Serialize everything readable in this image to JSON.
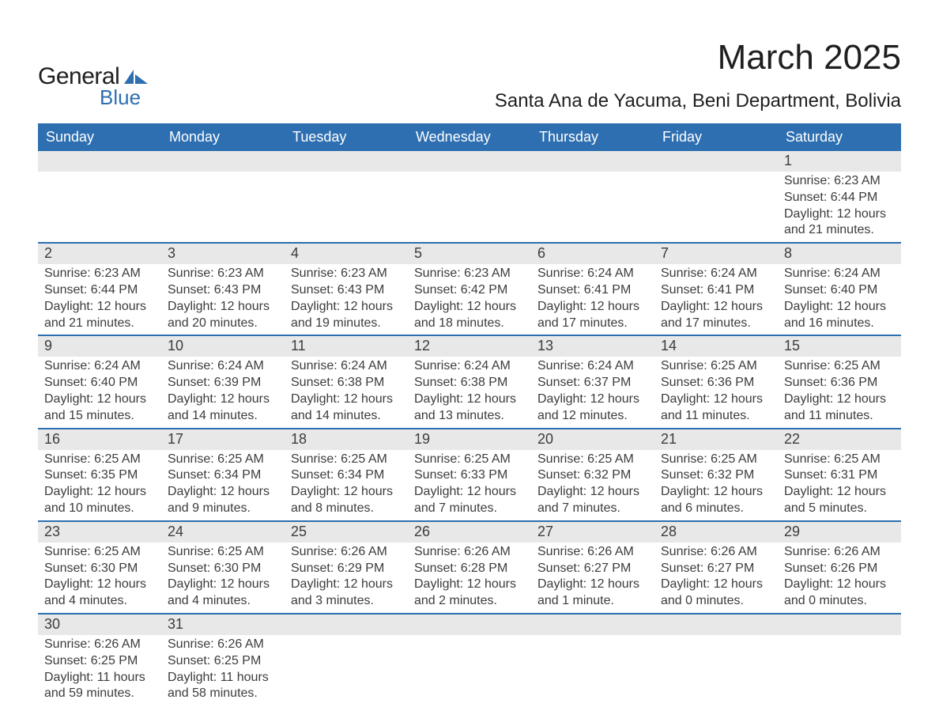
{
  "logo": {
    "word1": "General",
    "word2": "Blue",
    "shape_color": "#2d6fb0",
    "word1_color": "#1f1f1f",
    "word2_color": "#2d6fb0"
  },
  "header": {
    "month_title": "March 2025",
    "location": "Santa Ana de Yacuma, Beni Department, Bolivia",
    "title_color": "#1f1f1f"
  },
  "calendar": {
    "header_bg": "#2d6fb0",
    "header_fg": "#ffffff",
    "daynum_bg": "#e8e8e8",
    "week_border": "#2d6fb0",
    "text_color": "#3c3c3c",
    "day_headers": [
      "Sunday",
      "Monday",
      "Tuesday",
      "Wednesday",
      "Thursday",
      "Friday",
      "Saturday"
    ],
    "weeks": [
      [
        {
          "num": "",
          "lines": []
        },
        {
          "num": "",
          "lines": []
        },
        {
          "num": "",
          "lines": []
        },
        {
          "num": "",
          "lines": []
        },
        {
          "num": "",
          "lines": []
        },
        {
          "num": "",
          "lines": []
        },
        {
          "num": "1",
          "lines": [
            "Sunrise: 6:23 AM",
            "Sunset: 6:44 PM",
            "Daylight: 12 hours",
            "and 21 minutes."
          ]
        }
      ],
      [
        {
          "num": "2",
          "lines": [
            "Sunrise: 6:23 AM",
            "Sunset: 6:44 PM",
            "Daylight: 12 hours",
            "and 21 minutes."
          ]
        },
        {
          "num": "3",
          "lines": [
            "Sunrise: 6:23 AM",
            "Sunset: 6:43 PM",
            "Daylight: 12 hours",
            "and 20 minutes."
          ]
        },
        {
          "num": "4",
          "lines": [
            "Sunrise: 6:23 AM",
            "Sunset: 6:43 PM",
            "Daylight: 12 hours",
            "and 19 minutes."
          ]
        },
        {
          "num": "5",
          "lines": [
            "Sunrise: 6:23 AM",
            "Sunset: 6:42 PM",
            "Daylight: 12 hours",
            "and 18 minutes."
          ]
        },
        {
          "num": "6",
          "lines": [
            "Sunrise: 6:24 AM",
            "Sunset: 6:41 PM",
            "Daylight: 12 hours",
            "and 17 minutes."
          ]
        },
        {
          "num": "7",
          "lines": [
            "Sunrise: 6:24 AM",
            "Sunset: 6:41 PM",
            "Daylight: 12 hours",
            "and 17 minutes."
          ]
        },
        {
          "num": "8",
          "lines": [
            "Sunrise: 6:24 AM",
            "Sunset: 6:40 PM",
            "Daylight: 12 hours",
            "and 16 minutes."
          ]
        }
      ],
      [
        {
          "num": "9",
          "lines": [
            "Sunrise: 6:24 AM",
            "Sunset: 6:40 PM",
            "Daylight: 12 hours",
            "and 15 minutes."
          ]
        },
        {
          "num": "10",
          "lines": [
            "Sunrise: 6:24 AM",
            "Sunset: 6:39 PM",
            "Daylight: 12 hours",
            "and 14 minutes."
          ]
        },
        {
          "num": "11",
          "lines": [
            "Sunrise: 6:24 AM",
            "Sunset: 6:38 PM",
            "Daylight: 12 hours",
            "and 14 minutes."
          ]
        },
        {
          "num": "12",
          "lines": [
            "Sunrise: 6:24 AM",
            "Sunset: 6:38 PM",
            "Daylight: 12 hours",
            "and 13 minutes."
          ]
        },
        {
          "num": "13",
          "lines": [
            "Sunrise: 6:24 AM",
            "Sunset: 6:37 PM",
            "Daylight: 12 hours",
            "and 12 minutes."
          ]
        },
        {
          "num": "14",
          "lines": [
            "Sunrise: 6:25 AM",
            "Sunset: 6:36 PM",
            "Daylight: 12 hours",
            "and 11 minutes."
          ]
        },
        {
          "num": "15",
          "lines": [
            "Sunrise: 6:25 AM",
            "Sunset: 6:36 PM",
            "Daylight: 12 hours",
            "and 11 minutes."
          ]
        }
      ],
      [
        {
          "num": "16",
          "lines": [
            "Sunrise: 6:25 AM",
            "Sunset: 6:35 PM",
            "Daylight: 12 hours",
            "and 10 minutes."
          ]
        },
        {
          "num": "17",
          "lines": [
            "Sunrise: 6:25 AM",
            "Sunset: 6:34 PM",
            "Daylight: 12 hours",
            "and 9 minutes."
          ]
        },
        {
          "num": "18",
          "lines": [
            "Sunrise: 6:25 AM",
            "Sunset: 6:34 PM",
            "Daylight: 12 hours",
            "and 8 minutes."
          ]
        },
        {
          "num": "19",
          "lines": [
            "Sunrise: 6:25 AM",
            "Sunset: 6:33 PM",
            "Daylight: 12 hours",
            "and 7 minutes."
          ]
        },
        {
          "num": "20",
          "lines": [
            "Sunrise: 6:25 AM",
            "Sunset: 6:32 PM",
            "Daylight: 12 hours",
            "and 7 minutes."
          ]
        },
        {
          "num": "21",
          "lines": [
            "Sunrise: 6:25 AM",
            "Sunset: 6:32 PM",
            "Daylight: 12 hours",
            "and 6 minutes."
          ]
        },
        {
          "num": "22",
          "lines": [
            "Sunrise: 6:25 AM",
            "Sunset: 6:31 PM",
            "Daylight: 12 hours",
            "and 5 minutes."
          ]
        }
      ],
      [
        {
          "num": "23",
          "lines": [
            "Sunrise: 6:25 AM",
            "Sunset: 6:30 PM",
            "Daylight: 12 hours",
            "and 4 minutes."
          ]
        },
        {
          "num": "24",
          "lines": [
            "Sunrise: 6:25 AM",
            "Sunset: 6:30 PM",
            "Daylight: 12 hours",
            "and 4 minutes."
          ]
        },
        {
          "num": "25",
          "lines": [
            "Sunrise: 6:26 AM",
            "Sunset: 6:29 PM",
            "Daylight: 12 hours",
            "and 3 minutes."
          ]
        },
        {
          "num": "26",
          "lines": [
            "Sunrise: 6:26 AM",
            "Sunset: 6:28 PM",
            "Daylight: 12 hours",
            "and 2 minutes."
          ]
        },
        {
          "num": "27",
          "lines": [
            "Sunrise: 6:26 AM",
            "Sunset: 6:27 PM",
            "Daylight: 12 hours",
            "and 1 minute."
          ]
        },
        {
          "num": "28",
          "lines": [
            "Sunrise: 6:26 AM",
            "Sunset: 6:27 PM",
            "Daylight: 12 hours",
            "and 0 minutes."
          ]
        },
        {
          "num": "29",
          "lines": [
            "Sunrise: 6:26 AM",
            "Sunset: 6:26 PM",
            "Daylight: 12 hours",
            "and 0 minutes."
          ]
        }
      ],
      [
        {
          "num": "30",
          "lines": [
            "Sunrise: 6:26 AM",
            "Sunset: 6:25 PM",
            "Daylight: 11 hours",
            "and 59 minutes."
          ]
        },
        {
          "num": "31",
          "lines": [
            "Sunrise: 6:26 AM",
            "Sunset: 6:25 PM",
            "Daylight: 11 hours",
            "and 58 minutes."
          ]
        },
        {
          "num": "",
          "lines": []
        },
        {
          "num": "",
          "lines": []
        },
        {
          "num": "",
          "lines": []
        },
        {
          "num": "",
          "lines": []
        },
        {
          "num": "",
          "lines": []
        }
      ]
    ]
  }
}
